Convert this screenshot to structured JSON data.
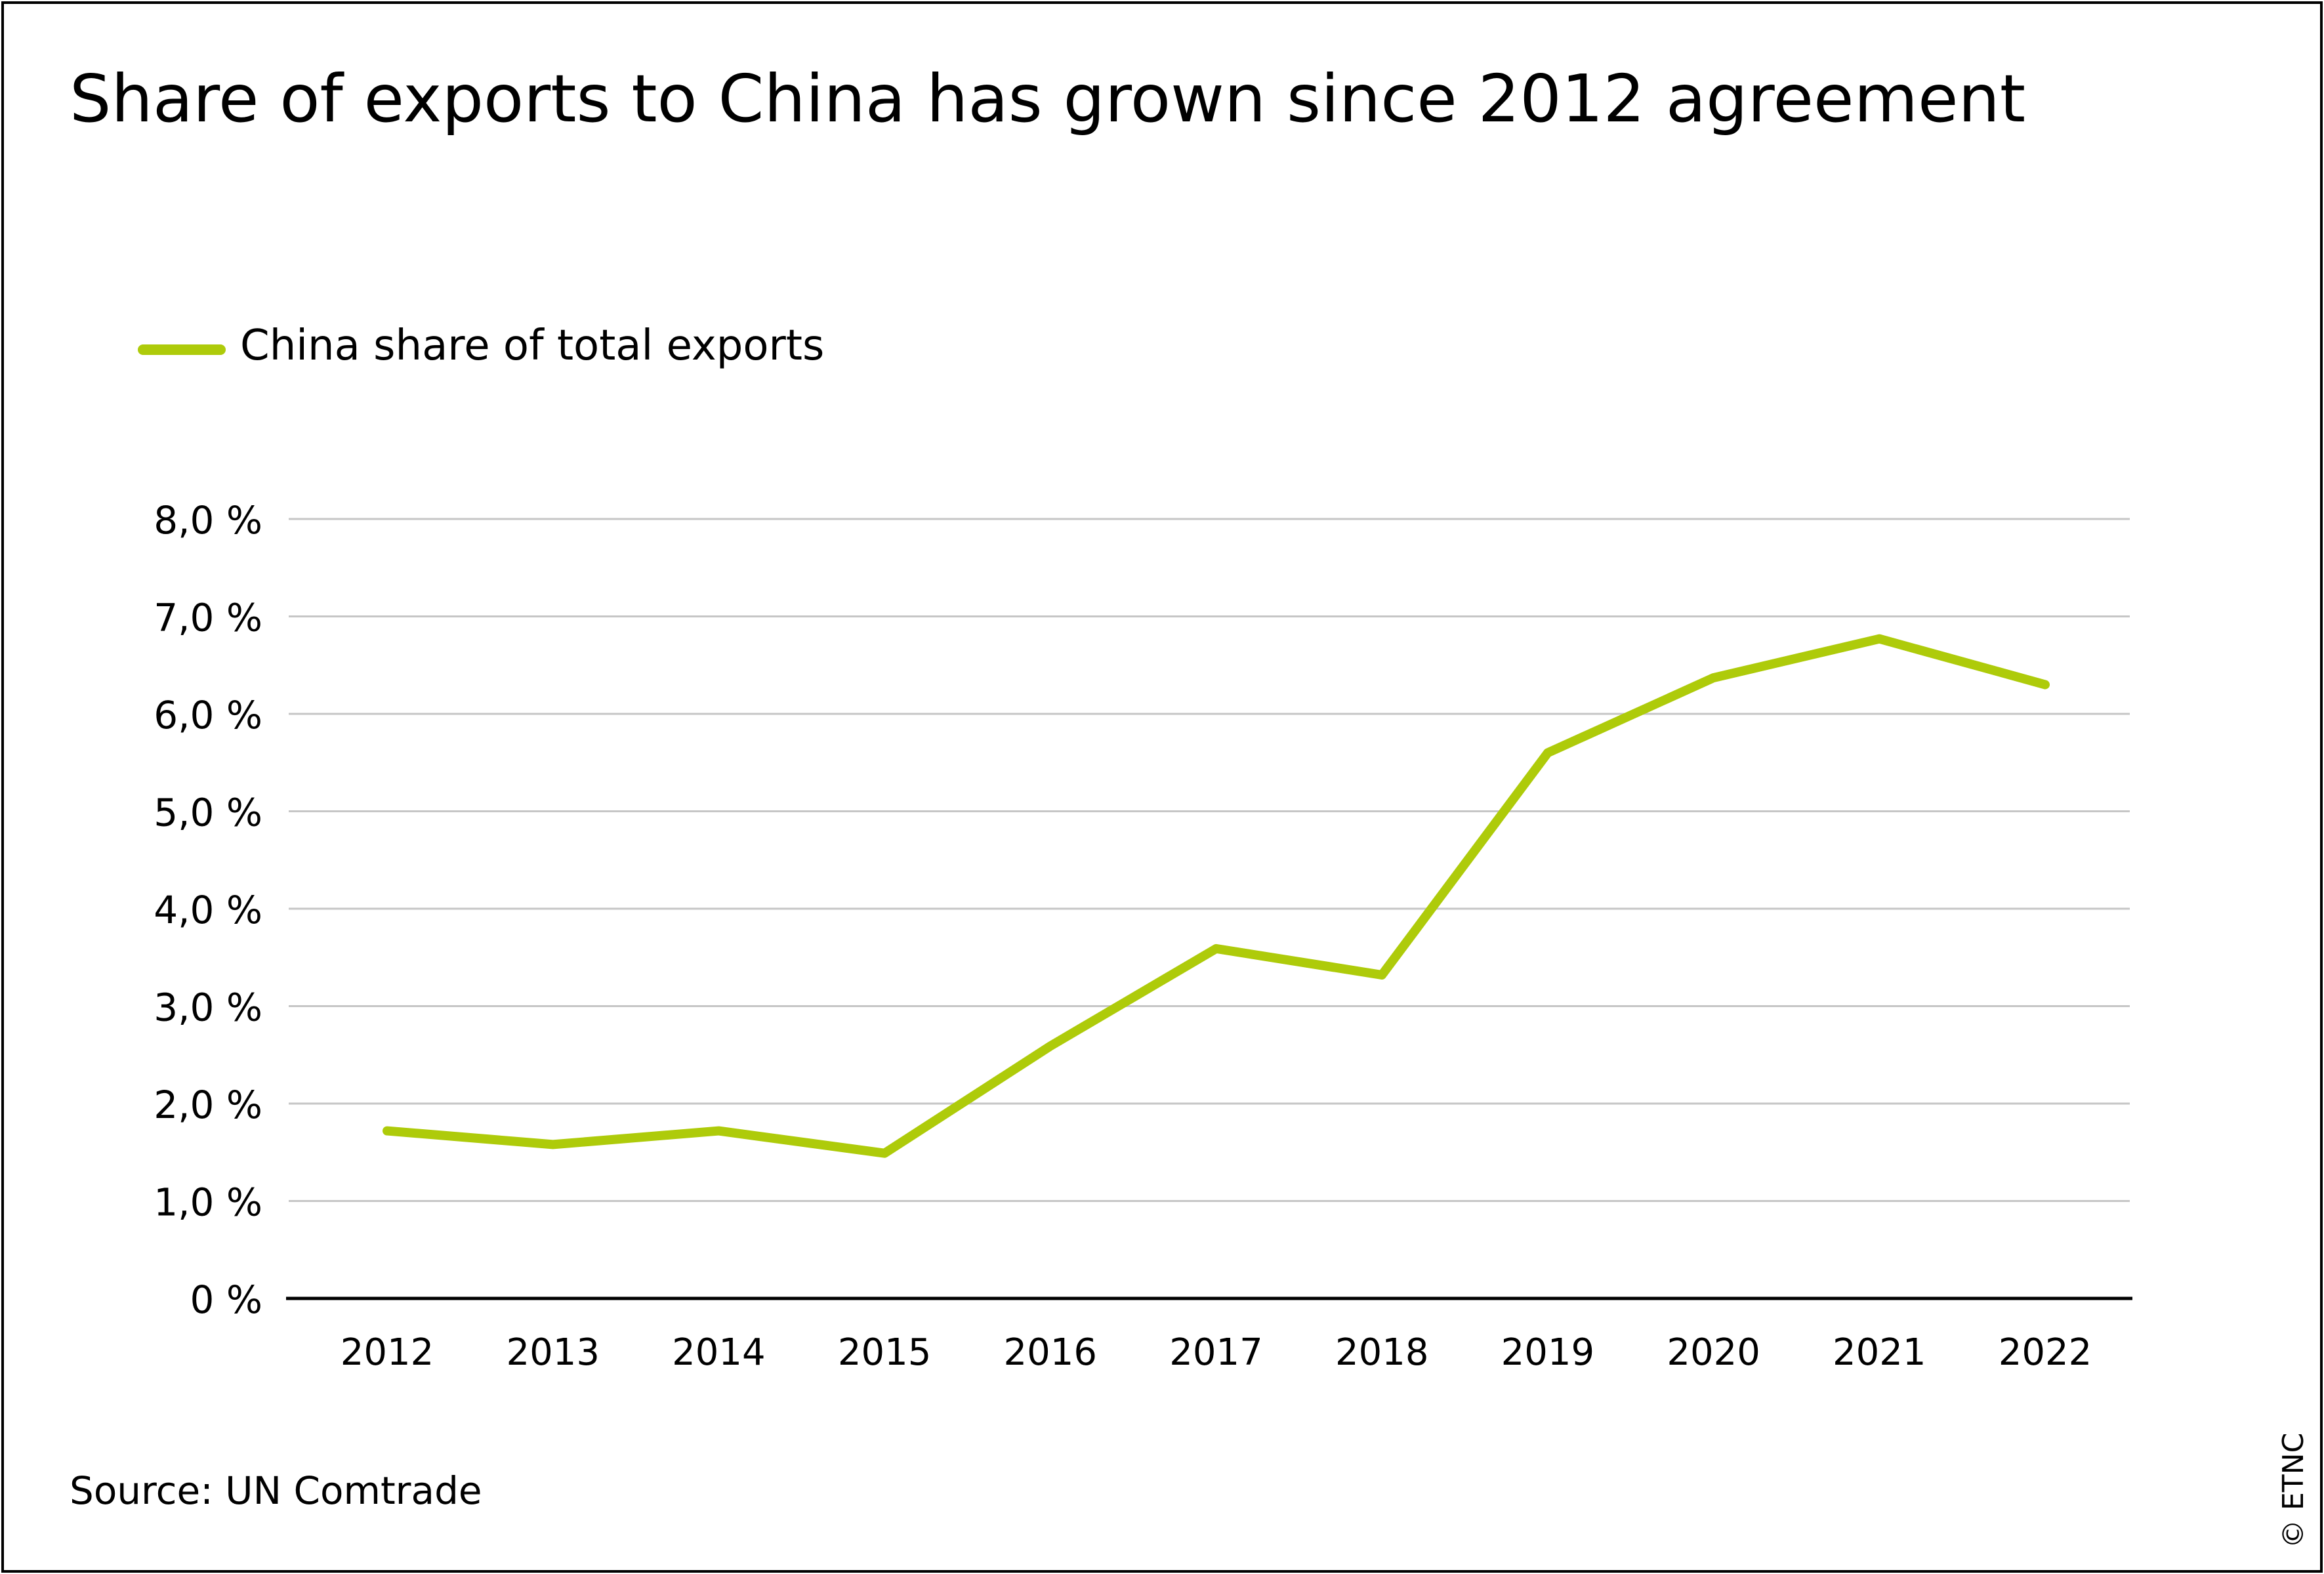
{
  "colors": {
    "line": "#AECB0A",
    "grid": "#C6C6C6",
    "axis": "#000000",
    "frame": "#000000"
  },
  "chart_data": {
    "type": "line",
    "title": "Share of exports to China has grown since 2012 agreement",
    "xlabel": "",
    "ylabel": "",
    "categories": [
      "2012",
      "2013",
      "2014",
      "2015",
      "2016",
      "2017",
      "2018",
      "2019",
      "2020",
      "2021",
      "2022"
    ],
    "series": [
      {
        "name": "China share of total exports",
        "values": [
          1.72,
          1.58,
          1.72,
          1.49,
          2.59,
          3.59,
          3.32,
          5.6,
          6.37,
          6.77,
          6.3
        ]
      }
    ],
    "ylim": [
      0,
      8
    ],
    "yticks": [
      0,
      1,
      2,
      3,
      4,
      5,
      6,
      7,
      8
    ],
    "ytick_labels": [
      "0 %",
      "1,0 %",
      "2,0 %",
      "3,0 %",
      "4,0 %",
      "5,0 %",
      "6,0 %",
      "7,0 %",
      "8,0 %"
    ],
    "grid": true,
    "legend_position": "top-left",
    "source": "Source: UN Comtrade",
    "credit": "© ETNC"
  }
}
